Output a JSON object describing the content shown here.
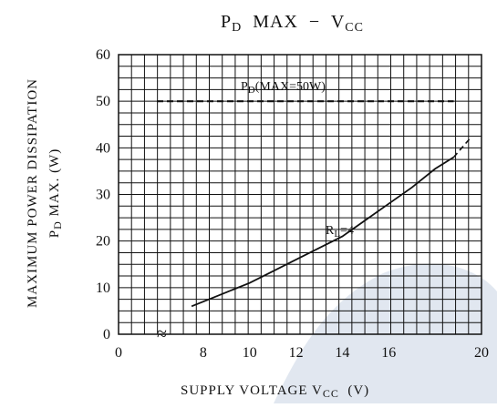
{
  "chart_data": {
    "type": "line",
    "title_parts": {
      "p": "P",
      "p_sub": "D",
      "middle": "  MAX  −  V",
      "v_sub": "CC"
    },
    "xlabel_parts": {
      "main": "SUPPLY VOLTAGE V",
      "sub": "CC",
      "unit": "  (V)"
    },
    "ylabel_line1": "MAXIMUM POWER DISSIPATION",
    "ylabel_line2_parts": {
      "p": "P",
      "sub": "D",
      "rest": " MAX. (W)"
    },
    "x_ticks": [
      "0",
      "8",
      "10",
      "12",
      "14",
      "16",
      "20"
    ],
    "y_ticks": [
      "0",
      "10",
      "20",
      "30",
      "40",
      "50",
      "60"
    ],
    "ylim": [
      0,
      60
    ],
    "xlim": [
      6,
      20
    ],
    "grid": true,
    "axis_break": "≈",
    "series": [
      {
        "label_parts": {
          "r": "R",
          "sub": "L",
          "rest": "=4"
        },
        "style": "solid",
        "x": [
          7.5,
          8,
          9,
          10,
          11,
          12,
          13,
          14,
          15,
          16,
          17,
          18,
          18.8
        ],
        "y": [
          6.0,
          7.0,
          9.0,
          11.0,
          13.5,
          16.0,
          18.5,
          21.0,
          24.5,
          28.0,
          31.5,
          35.5,
          38.0
        ]
      },
      {
        "style": "dashed",
        "x": [
          18.8,
          19.5
        ],
        "y": [
          38.0,
          42.0
        ]
      },
      {
        "label_parts": {
          "p": "P",
          "sub": "D",
          "rest": "(MAX=50W)"
        },
        "style": "dashed-heavy",
        "x": [
          6,
          18.8
        ],
        "y": [
          50,
          50
        ]
      }
    ]
  }
}
